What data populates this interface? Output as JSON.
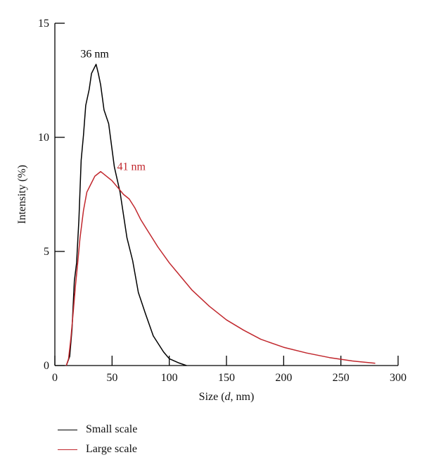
{
  "chart_data": {
    "type": "line",
    "xlabel_prefix": "Size (",
    "xlabel_italic": "d",
    "xlabel_suffix": ", nm)",
    "ylabel": "Intensity (%)",
    "xlim": [
      0,
      300
    ],
    "ylim": [
      0,
      15
    ],
    "x_ticks": [
      0,
      50,
      100,
      150,
      200,
      250,
      300
    ],
    "y_ticks": [
      0,
      5,
      10,
      15
    ],
    "grid": false,
    "legend_position": "bottom-left, below plot",
    "series": [
      {
        "name": "Small scale",
        "color": "#000000",
        "points": [
          [
            10,
            0
          ],
          [
            13,
            0.4
          ],
          [
            15,
            1.6
          ],
          [
            17,
            3.7
          ],
          [
            19,
            4.5
          ],
          [
            21,
            6.4
          ],
          [
            23,
            9.0
          ],
          [
            25,
            10.1
          ],
          [
            27,
            11.4
          ],
          [
            30,
            12.1
          ],
          [
            32,
            12.8
          ],
          [
            36,
            13.2
          ],
          [
            38,
            12.8
          ],
          [
            40,
            12.3
          ],
          [
            43,
            11.2
          ],
          [
            47,
            10.6
          ],
          [
            52,
            8.7
          ],
          [
            57,
            7.6
          ],
          [
            63,
            5.6
          ],
          [
            68,
            4.6
          ],
          [
            73,
            3.2
          ],
          [
            79,
            2.3
          ],
          [
            86,
            1.3
          ],
          [
            95,
            0.6
          ],
          [
            100,
            0.3
          ],
          [
            108,
            0.12
          ],
          [
            115,
            0
          ]
        ]
      },
      {
        "name": "Large scale",
        "color": "#c1272d",
        "points": [
          [
            10,
            0
          ],
          [
            12,
            0.3
          ],
          [
            14,
            1.2
          ],
          [
            16,
            2.3
          ],
          [
            18,
            3.5
          ],
          [
            20,
            4.5
          ],
          [
            22,
            5.6
          ],
          [
            25,
            6.8
          ],
          [
            28,
            7.6
          ],
          [
            31,
            7.9
          ],
          [
            35,
            8.3
          ],
          [
            40,
            8.5
          ],
          [
            45,
            8.3
          ],
          [
            50,
            8.1
          ],
          [
            55,
            7.8
          ],
          [
            60,
            7.5
          ],
          [
            65,
            7.3
          ],
          [
            70,
            6.9
          ],
          [
            75,
            6.4
          ],
          [
            80,
            6.0
          ],
          [
            85,
            5.6
          ],
          [
            90,
            5.2
          ],
          [
            100,
            4.5
          ],
          [
            110,
            3.9
          ],
          [
            120,
            3.3
          ],
          [
            135,
            2.6
          ],
          [
            150,
            2.0
          ],
          [
            165,
            1.55
          ],
          [
            180,
            1.15
          ],
          [
            200,
            0.8
          ],
          [
            220,
            0.55
          ],
          [
            240,
            0.35
          ],
          [
            260,
            0.2
          ],
          [
            280,
            0.1
          ]
        ]
      }
    ],
    "annotations": [
      {
        "text": "36 nm",
        "x": 36,
        "y": 13.2,
        "series": 0
      },
      {
        "text": "41 nm",
        "x": 41,
        "y": 8.5,
        "series": 1
      }
    ]
  },
  "legend": {
    "items": [
      {
        "label": "Small scale",
        "color": "#000000"
      },
      {
        "label": "Large scale",
        "color": "#c1272d"
      }
    ]
  }
}
